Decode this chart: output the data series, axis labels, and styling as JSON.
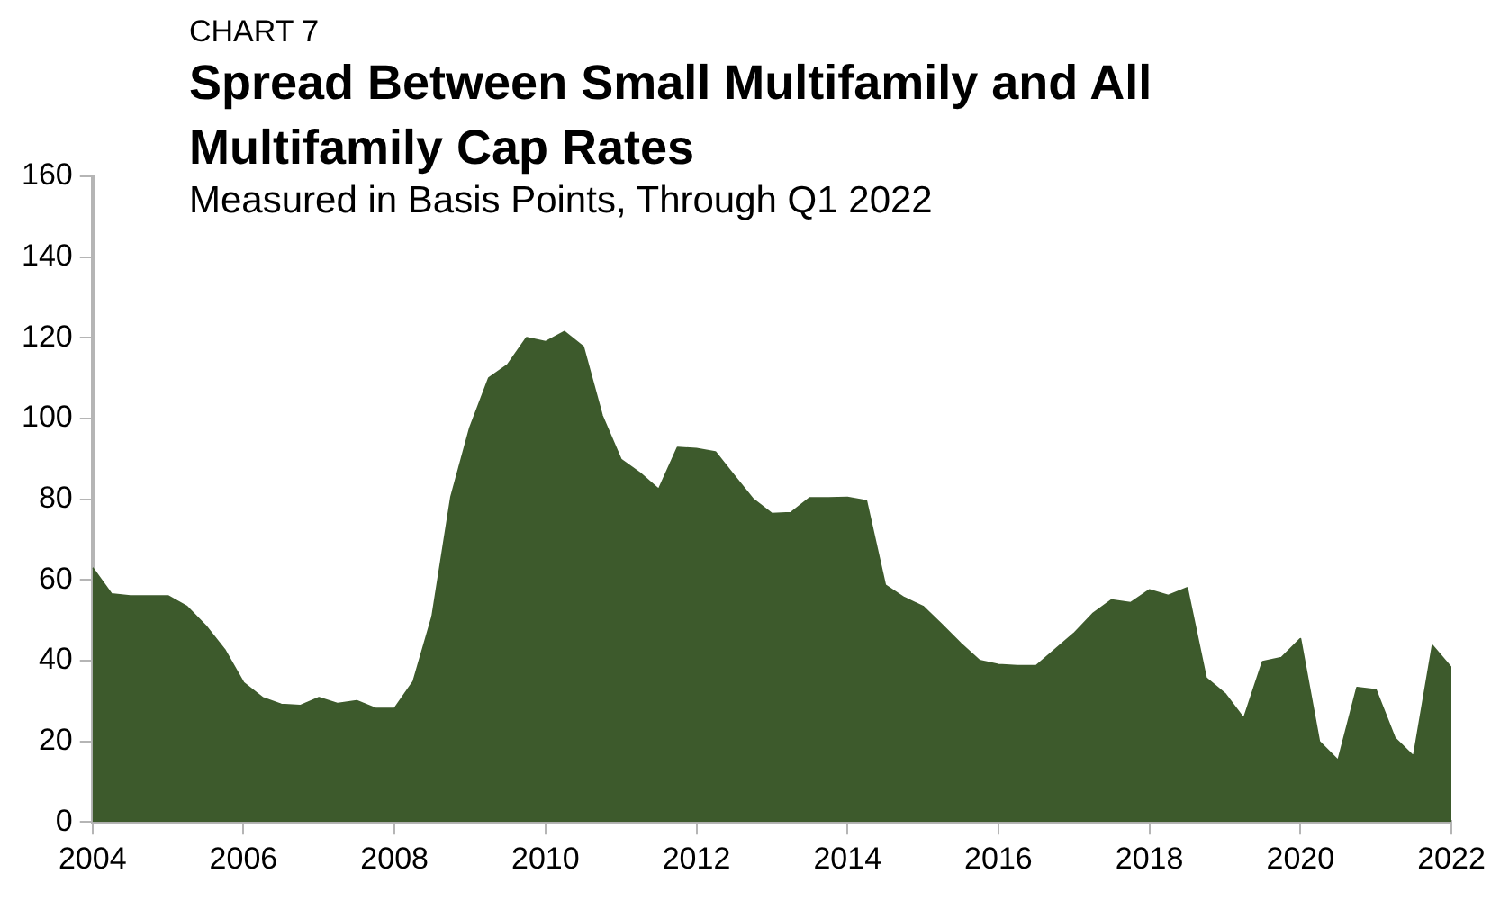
{
  "chart_data": {
    "type": "area",
    "title": "Spread Between Small Multifamily and All Multifamily Cap Rates",
    "subtitle": "Measured in Basis Points, Through Q1 2022",
    "annotations": [
      "CHART 7"
    ],
    "x": [
      2004,
      2004.25,
      2004.5,
      2004.75,
      2005,
      2005.25,
      2005.5,
      2005.75,
      2006,
      2006.25,
      2006.5,
      2006.75,
      2007,
      2007.25,
      2007.5,
      2007.75,
      2008,
      2008.25,
      2008.5,
      2008.75,
      2009,
      2009.25,
      2009.5,
      2009.75,
      2010,
      2010.25,
      2010.5,
      2010.75,
      2011,
      2011.25,
      2011.5,
      2011.75,
      2012,
      2012.25,
      2012.5,
      2012.75,
      2013,
      2013.25,
      2013.5,
      2013.75,
      2014,
      2014.25,
      2014.5,
      2014.75,
      2015,
      2015.25,
      2015.5,
      2015.75,
      2016,
      2016.25,
      2016.5,
      2016.75,
      2017,
      2017.25,
      2017.5,
      2017.75,
      2018,
      2018.25,
      2018.5,
      2018.75,
      2019,
      2019.25,
      2019.5,
      2019.75,
      2020,
      2020.25,
      2020.5,
      2020.75,
      2021,
      2021.25,
      2021.5,
      2021.75,
      2022
    ],
    "series": [
      {
        "color": "#3d5a2c",
        "values": [
          63,
          56.5,
          56,
          56,
          56,
          53.4,
          48.6,
          42.7,
          34.5,
          30.8,
          29.1,
          28.8,
          30.8,
          29.3,
          30,
          28.1,
          28.1,
          34.8,
          50.9,
          80.6,
          97.7,
          110,
          113.3,
          120,
          119,
          121.5,
          117.8,
          100.7,
          89.8,
          86.5,
          82.4,
          92.8,
          92.5,
          91.7,
          85.8,
          80,
          76.4,
          76.6,
          80.3,
          80.3,
          80.4,
          79.6,
          58.7,
          55.6,
          53.4,
          48.9,
          44.2,
          40,
          39,
          38.7,
          38.7,
          42.7,
          46.7,
          51.6,
          55,
          54.3,
          57.5,
          56.1,
          58,
          35.7,
          31.8,
          25.6,
          39.7,
          40.7,
          45.4,
          19.9,
          15.2,
          33.3,
          32.7,
          20.8,
          16.2,
          43.7,
          38.2
        ]
      }
    ],
    "xlim": [
      2004,
      2022
    ],
    "xticks": [
      2004,
      2006,
      2008,
      2010,
      2012,
      2014,
      2016,
      2018,
      2020,
      2022
    ],
    "ylim": [
      0,
      160
    ],
    "yticks": [
      0,
      20,
      40,
      60,
      80,
      100,
      120,
      140,
      160
    ],
    "grid": false,
    "legend": false
  }
}
